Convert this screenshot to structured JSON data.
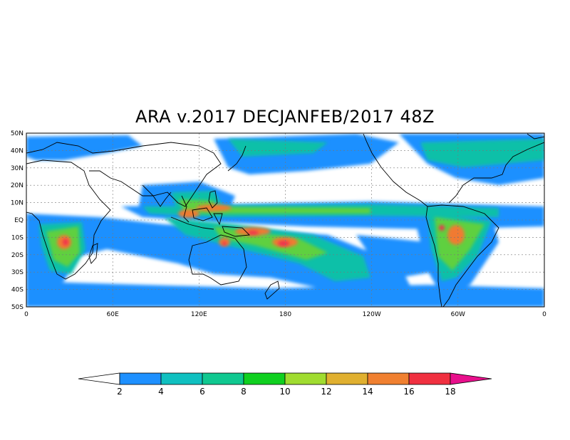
{
  "title": "ARA v.2017 DECJANFEB/2017 48Z",
  "map": {
    "lat_labels": [
      "50N",
      "40N",
      "30N",
      "20N",
      "10N",
      "EQ",
      "10S",
      "20S",
      "30S",
      "40S",
      "50S"
    ],
    "lon_labels": [
      "0",
      "60E",
      "120E",
      "180",
      "120W",
      "60W",
      "0"
    ],
    "lat_range": [
      -50,
      50
    ],
    "lon_range": [
      0,
      360
    ]
  },
  "colorbar": {
    "ticks": [
      "2",
      "4",
      "6",
      "8",
      "10",
      "12",
      "14",
      "16",
      "18"
    ],
    "colors": [
      "#ffffff",
      "#1e90ff",
      "#10c0c0",
      "#10c890",
      "#10d020",
      "#a0dc30",
      "#e0b030",
      "#f08030",
      "#f03040",
      "#e8108c"
    ]
  }
}
